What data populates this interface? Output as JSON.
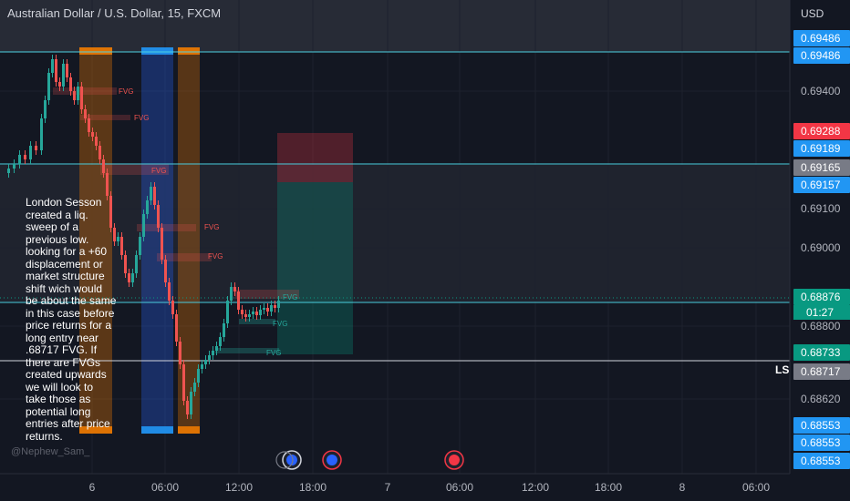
{
  "header": {
    "title": "Australian Dollar / U.S. Dollar, 15, FXCM"
  },
  "note": {
    "text": "London Sesson created a liq. sweep of a previous low. looking for a +60 displacement or market structure shift wich would be about the same in this case before price returns for a long entry near .68717 FVG. If there are FVGs created upwards we will look to take those as potential long entries after price returns."
  },
  "credit": "@Nephew_Sam_",
  "ls_label": "LS",
  "chart_data": {
    "type": "candlestick",
    "currency_label": "USD",
    "y_ticks": [
      "0.69400",
      "0.69100",
      "0.69000",
      "0.68800",
      "0.68620"
    ],
    "x_ticks": [
      "6",
      "06:00",
      "12:00",
      "18:00",
      "7",
      "06:00",
      "12:00",
      "18:00",
      "8",
      "06:00"
    ],
    "price_badges": [
      {
        "value": "0.69486",
        "color": "#2196f3"
      },
      {
        "value": "0.69486",
        "color": "#2196f3"
      },
      {
        "value": "0.69288",
        "color": "#f23645"
      },
      {
        "value": "0.69189",
        "color": "#2196f3"
      },
      {
        "value": "0.69165",
        "color": "#787b86"
      },
      {
        "value": "0.69157",
        "color": "#2196f3"
      },
      {
        "value": "0.68876",
        "color": "#089981"
      },
      {
        "value": "0.68733",
        "color": "#089981"
      },
      {
        "value": "0.68717",
        "color": "#787b86"
      },
      {
        "value": "0.68553",
        "color": "#2196f3"
      },
      {
        "value": "0.68553",
        "color": "#2196f3"
      },
      {
        "value": "0.68553",
        "color": "#2196f3"
      }
    ],
    "countdown": "01:27",
    "fvg_labels": [
      "FVG",
      "FVG",
      "FVG",
      "FVG",
      "FVG",
      "FVG",
      "FVG",
      "FVG"
    ],
    "colors": {
      "up": "#26a69a",
      "down": "#ef5350",
      "bg": "#131722",
      "session_orange": "#f57c00",
      "session_blue": "#2962ff"
    }
  }
}
